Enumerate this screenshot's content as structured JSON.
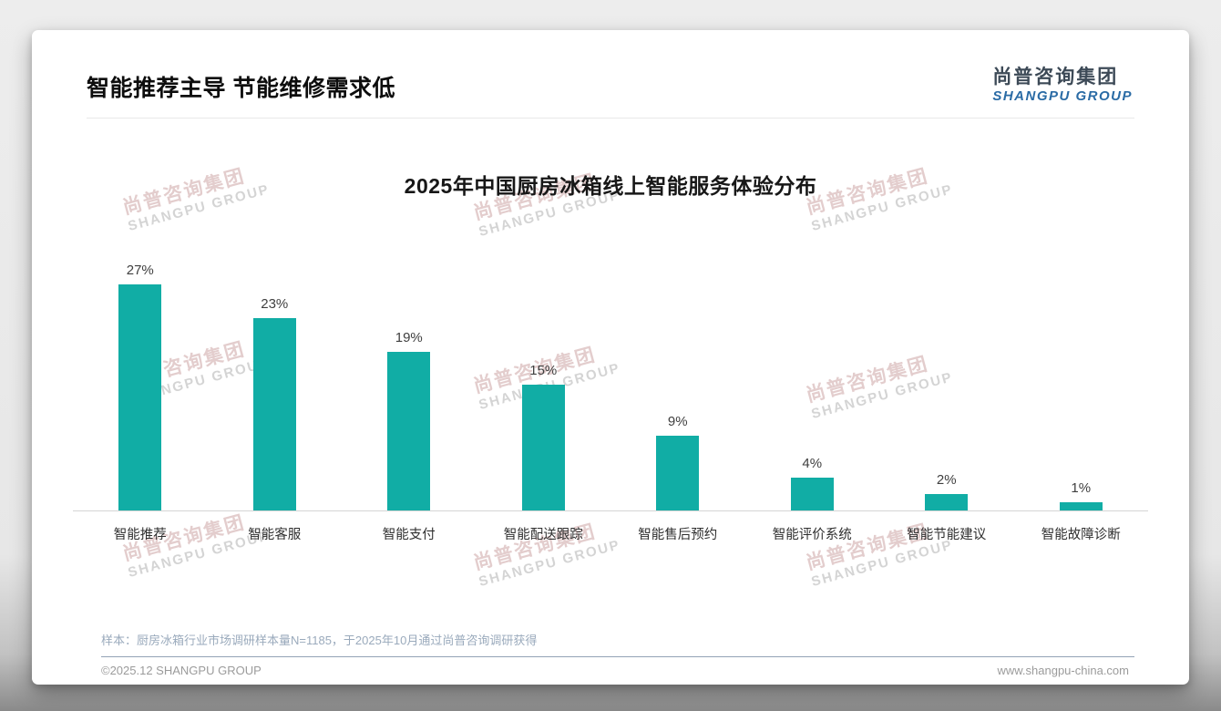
{
  "page": {
    "heading": "智能推荐主导 节能维修需求低",
    "logo": {
      "cn": "尚普咨询集团",
      "en": "SHANGPU GROUP"
    },
    "watermark": {
      "cn": "尚普咨询集团",
      "en": "SHANGPU GROUP"
    },
    "footnote": "样本：厨房冰箱行业市场调研样本量N=1185，于2025年10月通过尚普咨询调研获得",
    "footer_left": "©2025.12 SHANGPU GROUP",
    "footer_right": "www.shangpu-china.com"
  },
  "colors": {
    "bar": "#11ada5",
    "logo_cn": "#3d4a57",
    "logo_en": "#2a6ba5",
    "footnote": "#9aaabc",
    "footer_text": "#9b9b9b"
  },
  "chart_data": {
    "type": "bar",
    "title": "2025年中国厨房冰箱线上智能服务体验分布",
    "categories": [
      "智能推荐",
      "智能客服",
      "智能支付",
      "智能配送跟踪",
      "智能售后预约",
      "智能评价系统",
      "智能节能建议",
      "智能故障诊断"
    ],
    "values": [
      27,
      23,
      19,
      15,
      9,
      4,
      2,
      1
    ],
    "data_labels": [
      "27%",
      "23%",
      "19%",
      "15%",
      "9%",
      "4%",
      "2%",
      "1%"
    ],
    "unit": "%",
    "xlabel": "",
    "ylabel": "",
    "ylim": [
      0,
      30
    ],
    "grid": false,
    "legend": "none",
    "bar_color": "#11ada5"
  }
}
